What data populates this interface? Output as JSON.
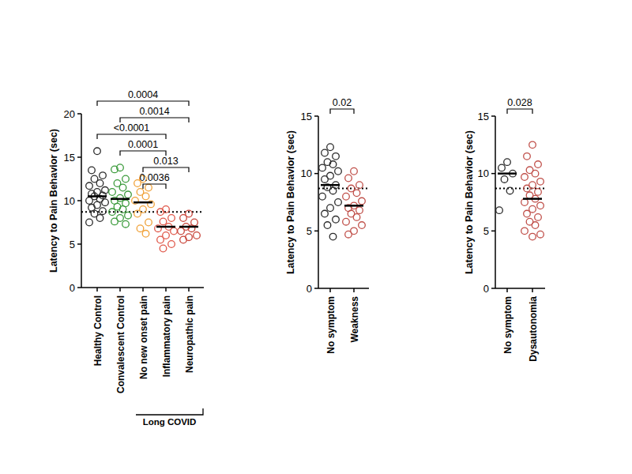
{
  "chart_data": [
    {
      "type": "strip",
      "y_label": "Latency to Pain Behavior (sec)",
      "ylim": [
        0,
        20
      ],
      "yticks": [
        0,
        5,
        10,
        15,
        20
      ],
      "grid": false,
      "reference_line": 8.7,
      "series": [
        {
          "name": "Healthy Control",
          "color": "#2b2b2b",
          "marker": "circle_open",
          "mean": 10.5,
          "values": [
            15.7,
            13.5,
            12.9,
            12.5,
            12.0,
            11.7,
            11.2,
            11.0,
            10.8,
            10.6,
            10.5,
            10.2,
            10.0,
            9.8,
            9.5,
            9.2,
            8.8,
            8.5,
            8.0,
            7.5
          ]
        },
        {
          "name": "Convalescent Control",
          "color": "#3c9b3c",
          "marker": "circle_open",
          "mean": 10.2,
          "values": [
            13.8,
            13.6,
            12.5,
            12.0,
            11.5,
            11.0,
            10.7,
            10.3,
            10.0,
            9.7,
            9.3,
            9.0,
            8.7,
            8.3,
            8.0,
            7.6,
            7.3
          ]
        },
        {
          "name": "No new onset pain",
          "color": "#f0a23a",
          "marker": "circle_open",
          "mean": 9.8,
          "values": [
            12.5,
            12.0,
            11.5,
            11.0,
            10.5,
            10.0,
            9.6,
            9.0,
            8.5,
            7.5,
            6.8,
            6.2
          ]
        },
        {
          "name": "Inflammatory pain",
          "color": "#e0584a",
          "marker": "circle_open",
          "mean": 7.0,
          "values": [
            9.0,
            8.7,
            8.0,
            7.6,
            7.0,
            6.8,
            6.5,
            6.0,
            5.5,
            5.0,
            4.5
          ]
        },
        {
          "name": "Neuropathic pain",
          "color": "#c8453a",
          "marker": "circle_open",
          "mean": 7.0,
          "values": [
            8.5,
            8.0,
            7.5,
            7.0,
            6.8,
            6.5,
            6.0,
            5.8,
            5.5
          ]
        }
      ],
      "brackets": [
        {
          "from": "Healthy Control",
          "to": "Neuropathic pain",
          "label": "0.0004"
        },
        {
          "from": "Convalescent Control",
          "to": "Neuropathic pain",
          "label": "0.0014"
        },
        {
          "from": "Healthy Control",
          "to": "Inflammatory pain",
          "label": "<0.0001"
        },
        {
          "from": "Convalescent Control",
          "to": "Inflammatory pain",
          "label": "0.0001"
        },
        {
          "from": "No new onset pain",
          "to": "Neuropathic pain",
          "label": "0.013"
        },
        {
          "from": "No new onset pain",
          "to": "Inflammatory pain",
          "label": "0.0036"
        }
      ],
      "groups": [
        {
          "label": "Long COVID",
          "from": "No new onset pain",
          "to": "Neuropathic pain"
        }
      ]
    },
    {
      "type": "strip",
      "y_label": "Latency to Pain Behavior (sec)",
      "ylim": [
        0,
        15
      ],
      "yticks": [
        0,
        5,
        10,
        15
      ],
      "grid": false,
      "reference_line": 8.7,
      "series": [
        {
          "name": "No symptom",
          "color": "#2b2b2b",
          "marker": "circle_open",
          "mean": 9.0,
          "values": [
            12.3,
            11.8,
            11.5,
            11.0,
            10.8,
            10.5,
            10.2,
            9.8,
            9.5,
            9.0,
            8.8,
            8.5,
            8.0,
            7.5,
            7.0,
            6.5,
            6.0,
            5.5,
            4.5
          ]
        },
        {
          "name": "Weakness",
          "color": "#c0504a",
          "marker": "circle_open",
          "mean": 7.2,
          "values": [
            10.2,
            9.6,
            9.0,
            8.7,
            8.3,
            8.0,
            7.6,
            7.2,
            7.0,
            6.8,
            6.5,
            6.2,
            5.8,
            5.5,
            5.0,
            4.7
          ]
        }
      ],
      "brackets": [
        {
          "from": "No symptom",
          "to": "Weakness",
          "label": "0.02"
        }
      ]
    },
    {
      "type": "strip",
      "y_label": "Latency to Pain Behavior (sec)",
      "ylim": [
        0,
        15
      ],
      "yticks": [
        0,
        5,
        10,
        15
      ],
      "grid": false,
      "reference_line": 8.7,
      "series": [
        {
          "name": "No symptom",
          "color": "#2b2b2b",
          "marker": "circle_open",
          "mean": 10.0,
          "values": [
            11.0,
            10.5,
            10.0,
            9.5,
            8.5,
            6.8
          ]
        },
        {
          "name": "Dysautonomia",
          "color": "#c0504a",
          "marker": "circle_open",
          "mean": 7.8,
          "values": [
            12.5,
            11.5,
            10.8,
            10.3,
            10.0,
            9.7,
            9.3,
            9.0,
            8.7,
            8.4,
            8.1,
            7.8,
            7.5,
            7.2,
            6.9,
            6.5,
            6.2,
            5.8,
            5.5,
            5.0,
            4.7,
            4.5
          ]
        }
      ],
      "brackets": [
        {
          "from": "No symptom",
          "to": "Dysautonomia",
          "label": "0.028"
        }
      ]
    }
  ]
}
